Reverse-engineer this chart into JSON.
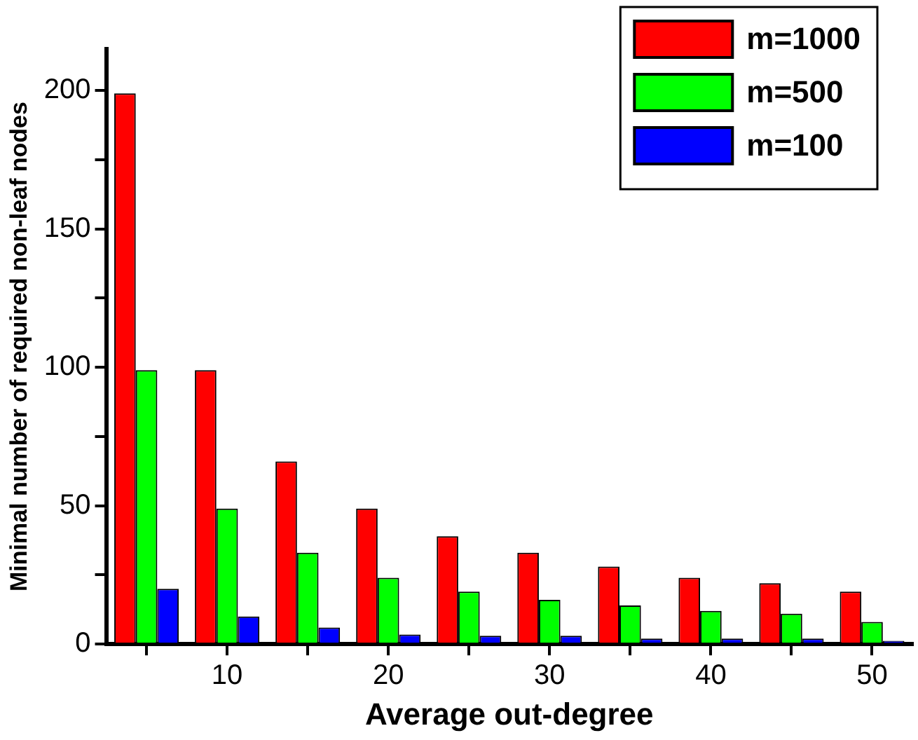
{
  "chart_data": {
    "type": "bar",
    "xlabel": "Average out-degree",
    "ylabel": "Minimal number of required non-leaf nodes",
    "x": [
      5,
      10,
      15,
      20,
      25,
      30,
      35,
      40,
      45,
      50
    ],
    "series": [
      {
        "name": "m=1000",
        "color": "#ff0000",
        "values": [
          199,
          99,
          66,
          49,
          39,
          33,
          28,
          24,
          22,
          19
        ]
      },
      {
        "name": "m=500",
        "color": "#00ff00",
        "values": [
          99,
          49,
          33,
          24,
          19,
          16,
          14,
          12,
          11,
          8
        ]
      },
      {
        "name": "m=100",
        "color": "#0000ff",
        "values": [
          20,
          10,
          6,
          3.5,
          3,
          3,
          2,
          2,
          2,
          1.2
        ]
      }
    ],
    "xlim": [
      2.5,
      52.5
    ],
    "xticks": [
      {
        "value": 5,
        "label": null
      },
      10,
      {
        "value": 15,
        "label": null
      },
      20,
      {
        "value": 25,
        "label": null
      },
      30,
      {
        "value": 35,
        "label": null
      },
      40,
      {
        "value": 45,
        "label": null
      },
      50
    ],
    "ylim": [
      0,
      215
    ],
    "yticks": [
      0,
      {
        "value": 25,
        "label": null
      },
      50,
      {
        "value": 75,
        "label": null
      },
      100,
      {
        "value": 125,
        "label": null
      },
      150,
      {
        "value": 175,
        "label": null
      },
      200
    ],
    "grid": false,
    "legend": "top right"
  }
}
